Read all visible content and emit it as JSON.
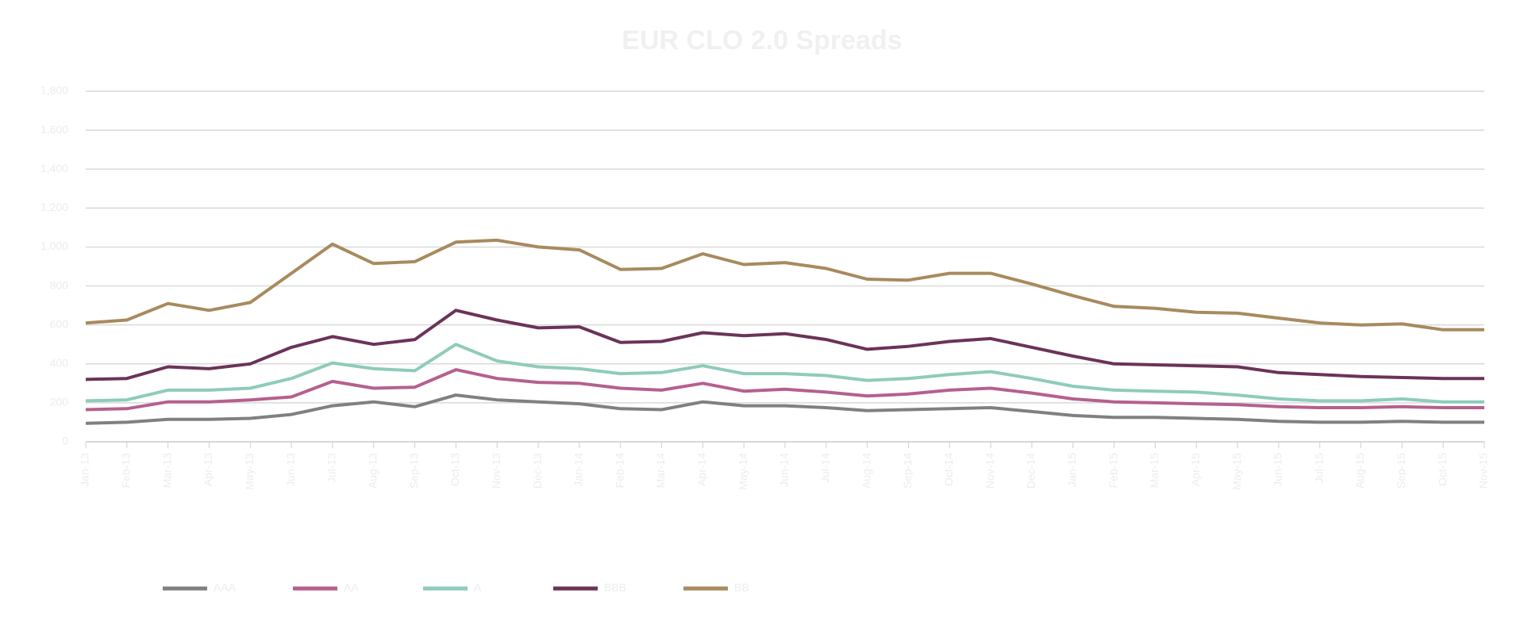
{
  "chart_data": {
    "type": "line",
    "title": "EUR CLO 2.0 Spreads",
    "categories": [
      "Jan-13",
      "Feb-13",
      "Mar-13",
      "Apr-13",
      "May-13",
      "Jun-13",
      "Jul-13",
      "Aug-13",
      "Sep-13",
      "Oct-13",
      "Nov-13",
      "Dec-13",
      "Jan-14",
      "Feb-14",
      "Mar-14",
      "Apr-14",
      "May-14",
      "Jun-14",
      "Jul-14",
      "Aug-14",
      "Sep-14",
      "Oct-14",
      "Nov-14",
      "Dec-14",
      "Jan-15",
      "Feb-15",
      "Mar-15",
      "Apr-15",
      "May-15",
      "Jun-15",
      "Jul-15",
      "Aug-15",
      "Sep-15",
      "Oct-15",
      "Nov-15"
    ],
    "series": [
      {
        "name": "AAA",
        "color": "#808080",
        "values": [
          95,
          100,
          115,
          115,
          120,
          140,
          185,
          205,
          180,
          240,
          215,
          205,
          195,
          170,
          165,
          205,
          185,
          185,
          175,
          160,
          165,
          170,
          175,
          155,
          135,
          125,
          125,
          120,
          115,
          105,
          100,
          100,
          105,
          100,
          100
        ]
      },
      {
        "name": "AA",
        "color": "#b5608f",
        "values": [
          165,
          170,
          205,
          205,
          215,
          230,
          310,
          275,
          280,
          370,
          325,
          305,
          300,
          275,
          265,
          300,
          260,
          270,
          255,
          235,
          245,
          265,
          275,
          250,
          220,
          205,
          200,
          195,
          190,
          180,
          175,
          175,
          180,
          175,
          175
        ]
      },
      {
        "name": "A",
        "color": "#8ecbbb",
        "values": [
          210,
          215,
          265,
          265,
          275,
          325,
          405,
          375,
          365,
          500,
          415,
          385,
          375,
          350,
          355,
          390,
          350,
          350,
          340,
          315,
          325,
          345,
          360,
          325,
          285,
          265,
          260,
          255,
          240,
          220,
          210,
          210,
          220,
          205,
          205
        ]
      },
      {
        "name": "BBB",
        "color": "#6b3358",
        "values": [
          320,
          325,
          385,
          375,
          400,
          485,
          540,
          500,
          525,
          675,
          625,
          585,
          590,
          510,
          515,
          560,
          545,
          555,
          525,
          475,
          490,
          515,
          530,
          485,
          440,
          400,
          395,
          390,
          385,
          355,
          345,
          335,
          330,
          325,
          325
        ]
      },
      {
        "name": "BB",
        "color": "#a88a5e",
        "values": [
          610,
          625,
          710,
          675,
          715,
          865,
          1015,
          915,
          925,
          1025,
          1035,
          1000,
          985,
          885,
          890,
          965,
          910,
          920,
          890,
          835,
          830,
          865,
          865,
          810,
          750,
          695,
          685,
          665,
          660,
          635,
          610,
          600,
          605,
          575,
          575
        ]
      }
    ],
    "ylim": [
      0,
      1800
    ],
    "yticks": [
      0,
      200,
      400,
      600,
      800,
      {
        "value": 1000,
        "label": "1,000"
      },
      {
        "value": 1200,
        "label": "1,200"
      },
      {
        "value": 1400,
        "label": "1,400"
      },
      {
        "value": 1600,
        "label": "1,600"
      },
      {
        "value": 1800,
        "label": "1,800"
      }
    ],
    "grid": true,
    "legend": "bottom"
  }
}
